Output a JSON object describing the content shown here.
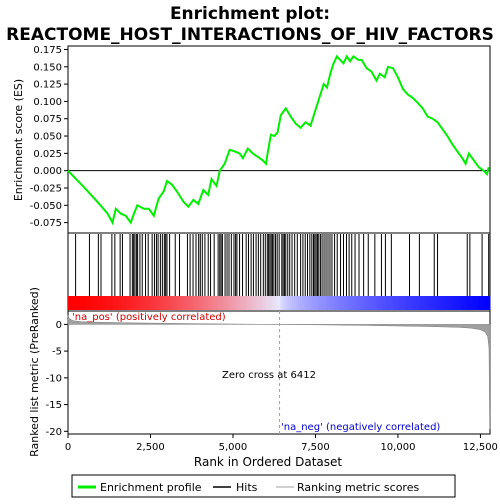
{
  "chart_data": {
    "type": "line",
    "title_line1": "Enrichment plot:",
    "title_line2": "REACTOME_HOST_INTERACTIONS_OF_HIV_FACTORS",
    "es_panel": {
      "ylabel": "Enrichment score (ES)",
      "ylim": [
        -0.09,
        0.18
      ],
      "yticks": [
        -0.075,
        -0.05,
        -0.025,
        0.0,
        0.025,
        0.05,
        0.075,
        0.1,
        0.125,
        0.15,
        0.175
      ],
      "ytick_labels": [
        "-0.075",
        "-0.050",
        "-0.025",
        "0.000",
        "0.025",
        "0.050",
        "0.075",
        "0.100",
        "0.125",
        "0.150",
        "0.175"
      ],
      "series_color": "#00ee00",
      "points": [
        [
          0,
          0.0
        ],
        [
          200,
          -0.01
        ],
        [
          450,
          -0.022
        ],
        [
          700,
          -0.035
        ],
        [
          950,
          -0.048
        ],
        [
          1200,
          -0.062
        ],
        [
          1350,
          -0.075
        ],
        [
          1450,
          -0.055
        ],
        [
          1600,
          -0.062
        ],
        [
          1750,
          -0.065
        ],
        [
          1900,
          -0.075
        ],
        [
          2000,
          -0.062
        ],
        [
          2100,
          -0.05
        ],
        [
          2300,
          -0.055
        ],
        [
          2450,
          -0.055
        ],
        [
          2600,
          -0.065
        ],
        [
          2750,
          -0.04
        ],
        [
          2900,
          -0.03
        ],
        [
          3000,
          -0.015
        ],
        [
          3150,
          -0.02
        ],
        [
          3300,
          -0.03
        ],
        [
          3500,
          -0.045
        ],
        [
          3650,
          -0.052
        ],
        [
          3800,
          -0.042
        ],
        [
          3950,
          -0.048
        ],
        [
          4100,
          -0.028
        ],
        [
          4250,
          -0.035
        ],
        [
          4350,
          -0.012
        ],
        [
          4500,
          -0.022
        ],
        [
          4600,
          0.0
        ],
        [
          4750,
          0.01
        ],
        [
          4900,
          0.03
        ],
        [
          5050,
          0.028
        ],
        [
          5200,
          0.025
        ],
        [
          5300,
          0.018
        ],
        [
          5450,
          0.032
        ],
        [
          5600,
          0.025
        ],
        [
          5750,
          0.02
        ],
        [
          5900,
          0.015
        ],
        [
          6000,
          0.01
        ],
        [
          6050,
          0.025
        ],
        [
          6150,
          0.052
        ],
        [
          6250,
          0.05
        ],
        [
          6350,
          0.055
        ],
        [
          6450,
          0.08
        ],
        [
          6600,
          0.09
        ],
        [
          6750,
          0.078
        ],
        [
          6900,
          0.068
        ],
        [
          7050,
          0.062
        ],
        [
          7200,
          0.07
        ],
        [
          7350,
          0.065
        ],
        [
          7450,
          0.08
        ],
        [
          7550,
          0.095
        ],
        [
          7650,
          0.11
        ],
        [
          7750,
          0.125
        ],
        [
          7850,
          0.12
        ],
        [
          7950,
          0.14
        ],
        [
          8050,
          0.155
        ],
        [
          8150,
          0.165
        ],
        [
          8250,
          0.16
        ],
        [
          8350,
          0.155
        ],
        [
          8450,
          0.165
        ],
        [
          8550,
          0.158
        ],
        [
          8650,
          0.165
        ],
        [
          8800,
          0.16
        ],
        [
          8900,
          0.16
        ],
        [
          9050,
          0.148
        ],
        [
          9200,
          0.143
        ],
        [
          9350,
          0.13
        ],
        [
          9450,
          0.14
        ],
        [
          9600,
          0.135
        ],
        [
          9700,
          0.15
        ],
        [
          9850,
          0.148
        ],
        [
          10000,
          0.135
        ],
        [
          10150,
          0.118
        ],
        [
          10300,
          0.11
        ],
        [
          10450,
          0.105
        ],
        [
          10600,
          0.098
        ],
        [
          10750,
          0.09
        ],
        [
          10900,
          0.078
        ],
        [
          11050,
          0.075
        ],
        [
          11200,
          0.07
        ],
        [
          11350,
          0.06
        ],
        [
          11500,
          0.05
        ],
        [
          11650,
          0.038
        ],
        [
          11800,
          0.028
        ],
        [
          11950,
          0.018
        ],
        [
          12050,
          0.01
        ],
        [
          12150,
          0.025
        ],
        [
          12300,
          0.015
        ],
        [
          12450,
          0.005
        ],
        [
          12600,
          0.0
        ],
        [
          12700,
          -0.005
        ],
        [
          12750,
          0.005
        ]
      ]
    },
    "hits_panel": {
      "hit_color": "#000000",
      "positions": [
        230,
        650,
        920,
        1000,
        1330,
        1420,
        1580,
        1650,
        1880,
        1950,
        1990,
        2030,
        2080,
        2110,
        2180,
        2250,
        2350,
        2430,
        2550,
        2620,
        2680,
        2730,
        2800,
        2860,
        2920,
        2960,
        3000,
        3080,
        3250,
        3380,
        3620,
        3700,
        3790,
        3880,
        3960,
        4010,
        4070,
        4150,
        4250,
        4320,
        4430,
        4550,
        4600,
        4640,
        4680,
        4760,
        4820,
        4880,
        4950,
        5030,
        5080,
        5120,
        5200,
        5290,
        5400,
        5470,
        5550,
        5620,
        5700,
        5770,
        5840,
        5920,
        5980,
        6040,
        6080,
        6120,
        6160,
        6200,
        6240,
        6290,
        6340,
        6400,
        6480,
        6520,
        6560,
        6600,
        6660,
        6720,
        6790,
        6870,
        6950,
        7050,
        7120,
        7190,
        7260,
        7330,
        7390,
        7440,
        7480,
        7520,
        7560,
        7600,
        7650,
        7700,
        7760,
        7820,
        7880,
        7940,
        8000,
        8080,
        8160,
        8260,
        8350,
        8440,
        8520,
        8600,
        8700,
        8820,
        8960,
        9100,
        9300,
        9500,
        9620,
        9800,
        10350,
        10650,
        11100,
        11200,
        12100,
        12180,
        12550,
        12750
      ],
      "bar_colors": [
        "#ff0000",
        "#e8e8ff",
        "#0000ff"
      ],
      "pos_label": "'na_pos' (positively correlated)",
      "neg_label": "'na_neg' (negatively correlated)"
    },
    "rank_panel": {
      "ylabel": "Ranked list metric (PreRanked)",
      "xlabel": "Rank in Ordered Dataset",
      "ylim": [
        -20.5,
        2.5
      ],
      "yticks": [
        0,
        -5,
        -10,
        -15,
        -20
      ],
      "ytick_labels": [
        "0",
        "-5",
        "-10",
        "-15",
        "-20"
      ],
      "zero_cross_label": "Zero cross at 6412",
      "zero_cross_rank": 6412,
      "fill_color": "#a0a0a0",
      "profile": [
        [
          0,
          1.7
        ],
        [
          40,
          1.1
        ],
        [
          150,
          0.7
        ],
        [
          400,
          0.5
        ],
        [
          1000,
          0.38
        ],
        [
          2000,
          0.27
        ],
        [
          3000,
          0.2
        ],
        [
          4000,
          0.13
        ],
        [
          5000,
          0.07
        ],
        [
          6000,
          0.02
        ],
        [
          6412,
          0.0
        ],
        [
          7000,
          -0.05
        ],
        [
          8000,
          -0.12
        ],
        [
          9000,
          -0.2
        ],
        [
          10000,
          -0.3
        ],
        [
          11000,
          -0.42
        ],
        [
          11800,
          -0.55
        ],
        [
          12200,
          -0.7
        ],
        [
          12500,
          -1.0
        ],
        [
          12650,
          -1.5
        ],
        [
          12720,
          -2.3
        ],
        [
          12760,
          -4.5
        ],
        [
          12780,
          -19.5
        ],
        [
          12790,
          -19.5
        ]
      ]
    },
    "x_axis": {
      "xlim": [
        0,
        12790
      ],
      "xticks": [
        0,
        2500,
        5000,
        7500,
        10000,
        12500
      ],
      "xtick_labels": [
        "0",
        "2,500",
        "5,000",
        "7,500",
        "10,000",
        "12,500"
      ]
    },
    "legend": {
      "items": [
        {
          "label": "Enrichment profile",
          "color": "#00ee00",
          "kind": "thick-line"
        },
        {
          "label": "Hits",
          "color": "#000000",
          "kind": "line"
        },
        {
          "label": "Ranking metric scores",
          "color": "#c0c0c0",
          "kind": "line"
        }
      ]
    }
  }
}
